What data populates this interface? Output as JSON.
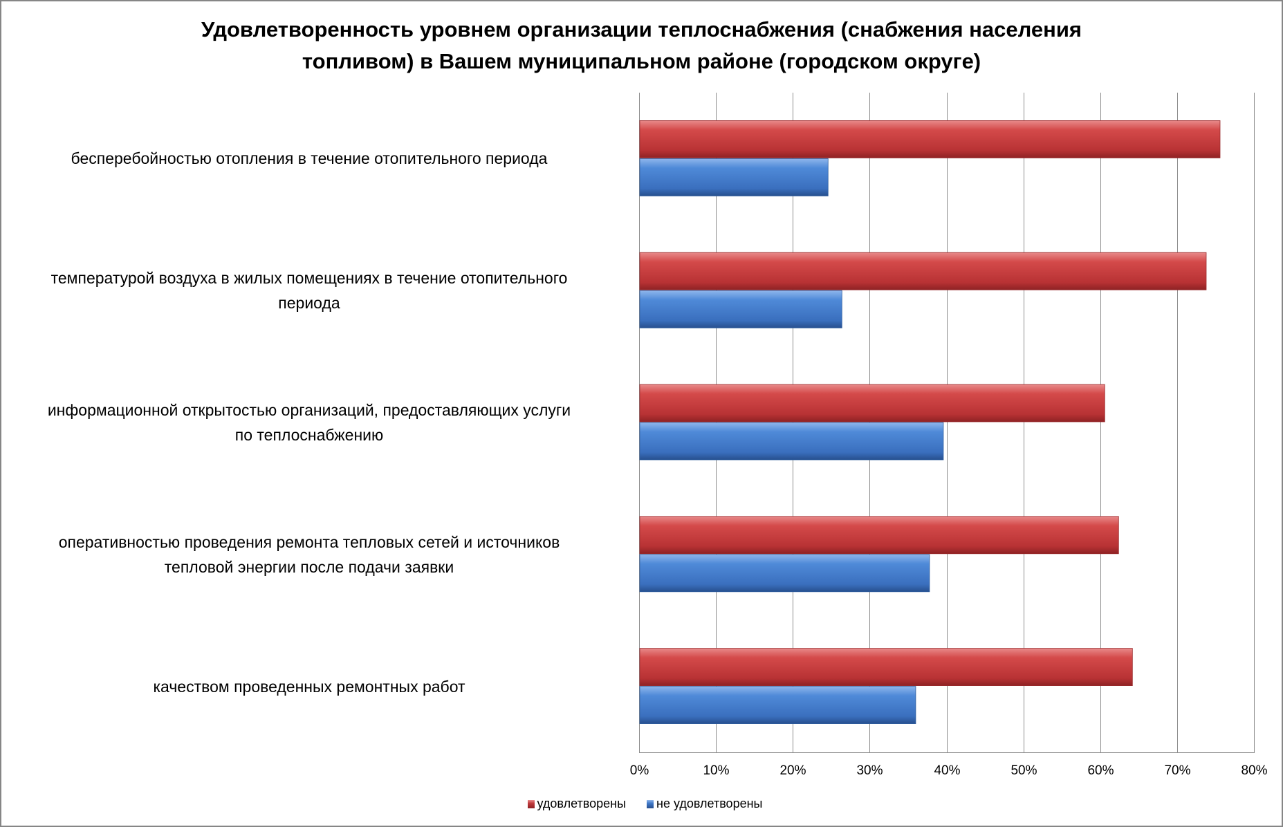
{
  "chart_data": {
    "type": "bar",
    "orientation": "horizontal",
    "title": "Удовлетворенность уровнем организации теплоснабжения (снабжения населения топливом) в Вашем муниципальном районе (городском округе)",
    "title_lines": [
      "Удовлетворенность уровнем организации теплоснабжения (снабжения населения",
      "топливом) в Вашем муниципальном районе (городском округе)"
    ],
    "categories": [
      [
        "бесперебойностью  отопления в течение отопительного периода"
      ],
      [
        "температурой  воздуха в жилых помещениях в течение отопительного",
        "периода"
      ],
      [
        "информационной открытостью организаций, предоставляющих услуги",
        "по теплоснабжению"
      ],
      [
        "оперативностью проведения ремонта тепловых сетей и источников",
        "тепловой энергии после подачи заявки"
      ],
      [
        "качеством  проведенных ремонтных работ"
      ]
    ],
    "series": [
      {
        "name": "удовлетворены",
        "color": "#c0393b",
        "values": [
          75.5,
          73.7,
          60.5,
          62.3,
          64.1
        ]
      },
      {
        "name": "не удовлетворены",
        "color": "#3f78c8",
        "values": [
          24.5,
          26.3,
          39.5,
          37.7,
          35.9
        ]
      }
    ],
    "xlim": [
      0,
      80
    ],
    "xticks": [
      "0%",
      "10%",
      "20%",
      "30%",
      "40%",
      "50%",
      "60%",
      "70%",
      "80%"
    ],
    "grid": true,
    "legend": "bottom"
  }
}
